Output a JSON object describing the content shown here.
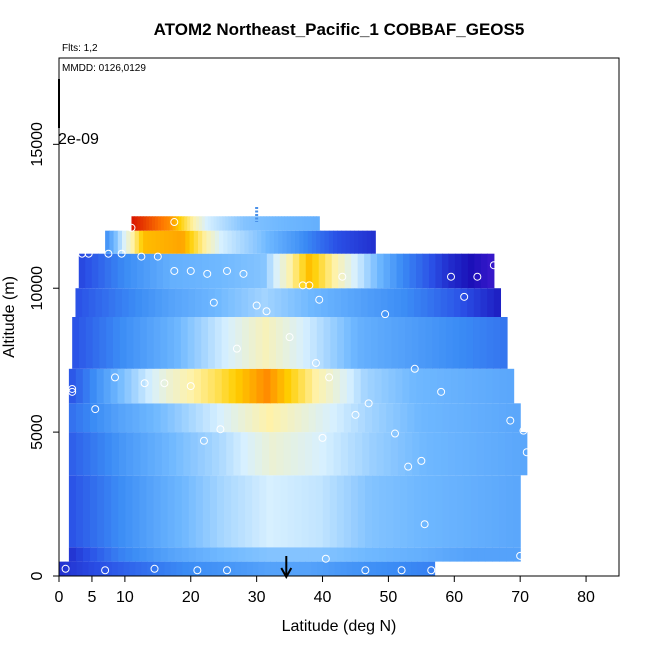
{
  "chart_data": {
    "type": "heatmap",
    "title": "ATOM2 Northeast_Pacific_1 COBBAF_GEOS5",
    "flights_label": "Flts: 1,2",
    "mmdd_label": "MMDD: 0126,0129",
    "xlabel": "Latitude (deg N)",
    "ylabel": "Altitude (m)",
    "xlim": [
      0,
      85
    ],
    "ylim": [
      0,
      18000
    ],
    "x_ticks": [
      0,
      5,
      10,
      20,
      30,
      40,
      50,
      60,
      70,
      80
    ],
    "y_ticks": [
      0,
      5000,
      10000,
      15000
    ],
    "overlay_label": "2e-09",
    "grid": false,
    "arrow_latitude": 34.5,
    "curtain": {
      "layers": [
        {
          "alt_bottom": 0,
          "alt_top": 500,
          "lat_start": 0,
          "lat_end": 57,
          "values": [
            0.15,
            0.2,
            0.25,
            0.3,
            0.32,
            0.35,
            0.35,
            0.32,
            0.3,
            0.28
          ]
        },
        {
          "alt_bottom": 500,
          "alt_top": 1000,
          "lat_start": 1.5,
          "lat_end": 70,
          "values": [
            0.15,
            0.28,
            0.35,
            0.4,
            0.42,
            0.42,
            0.4,
            0.38,
            0.35,
            0.35
          ]
        },
        {
          "alt_bottom": 1000,
          "alt_top": 3500,
          "lat_start": 1.5,
          "lat_end": 70,
          "values": [
            0.2,
            0.3,
            0.38,
            0.45,
            0.5,
            0.48,
            0.42,
            0.4,
            0.38,
            0.36
          ]
        },
        {
          "alt_bottom": 3500,
          "alt_top": 5000,
          "lat_start": 1.5,
          "lat_end": 71,
          "values": [
            0.22,
            0.32,
            0.4,
            0.46,
            0.55,
            0.5,
            0.44,
            0.4,
            0.38,
            0.36
          ]
        },
        {
          "alt_bottom": 5000,
          "alt_top": 6000,
          "lat_start": 1.5,
          "lat_end": 70,
          "values": [
            0.25,
            0.35,
            0.42,
            0.5,
            0.6,
            0.52,
            0.45,
            0.4,
            0.38,
            0.36
          ]
        },
        {
          "alt_bottom": 6000,
          "alt_top": 7200,
          "lat_start": 1.5,
          "lat_end": 69,
          "values": [
            0.2,
            0.4,
            0.55,
            0.65,
            0.78,
            0.6,
            0.45,
            0.4,
            0.38,
            0.36
          ]
        },
        {
          "alt_bottom": 7200,
          "alt_top": 9000,
          "lat_start": 2,
          "lat_end": 68,
          "values": [
            0.2,
            0.3,
            0.38,
            0.48,
            0.58,
            0.48,
            0.38,
            0.34,
            0.3,
            0.26
          ]
        },
        {
          "alt_bottom": 9000,
          "alt_top": 10000,
          "lat_start": 2.5,
          "lat_end": 67,
          "values": [
            0.2,
            0.28,
            0.35,
            0.4,
            0.45,
            0.4,
            0.35,
            0.3,
            0.22,
            0.12
          ]
        },
        {
          "alt_bottom": 10000,
          "alt_top": 11200,
          "lat_start": 3,
          "lat_end": 66,
          "values": [
            0.18,
            0.3,
            0.38,
            0.4,
            0.42,
            0.72,
            0.5,
            0.3,
            0.15,
            0.05
          ]
        },
        {
          "alt_bottom": 11200,
          "alt_top": 12000,
          "lat_start": 7,
          "lat_end": 48,
          "values": [
            0.3,
            0.72,
            0.75,
            0.5,
            0.42,
            0.32,
            0.2,
            0.15
          ]
        },
        {
          "alt_bottom": 12000,
          "alt_top": 12500,
          "lat_start": 11,
          "lat_end": 39.5,
          "values": [
            0.9,
            0.78,
            0.5,
            0.42,
            0.4,
            0.38
          ]
        }
      ]
    },
    "points": [
      {
        "lat": 1,
        "alt": 250
      },
      {
        "lat": 7,
        "alt": 200
      },
      {
        "lat": 14.5,
        "alt": 250
      },
      {
        "lat": 21,
        "alt": 200
      },
      {
        "lat": 25.5,
        "alt": 200
      },
      {
        "lat": 46.5,
        "alt": 200
      },
      {
        "lat": 52,
        "alt": 200
      },
      {
        "lat": 56.5,
        "alt": 200
      },
      {
        "lat": 40.5,
        "alt": 600
      },
      {
        "lat": 70,
        "alt": 700
      },
      {
        "lat": 55.5,
        "alt": 1800
      },
      {
        "lat": 53,
        "alt": 3800
      },
      {
        "lat": 55,
        "alt": 4000
      },
      {
        "lat": 71,
        "alt": 4300
      },
      {
        "lat": 22,
        "alt": 4700
      },
      {
        "lat": 24.5,
        "alt": 5100
      },
      {
        "lat": 40,
        "alt": 4800
      },
      {
        "lat": 51,
        "alt": 4950
      },
      {
        "lat": 70.5,
        "alt": 5050
      },
      {
        "lat": 68.5,
        "alt": 5400
      },
      {
        "lat": 5.5,
        "alt": 5800
      },
      {
        "lat": 45,
        "alt": 5600
      },
      {
        "lat": 47,
        "alt": 6000
      },
      {
        "lat": 2,
        "alt": 6400
      },
      {
        "lat": 2,
        "alt": 6500
      },
      {
        "lat": 58,
        "alt": 6400
      },
      {
        "lat": 20,
        "alt": 6600
      },
      {
        "lat": 13,
        "alt": 6700
      },
      {
        "lat": 16,
        "alt": 6700
      },
      {
        "lat": 8.5,
        "alt": 6900
      },
      {
        "lat": 41,
        "alt": 6900
      },
      {
        "lat": 54,
        "alt": 7200
      },
      {
        "lat": 39,
        "alt": 7400
      },
      {
        "lat": 27,
        "alt": 7900
      },
      {
        "lat": 35,
        "alt": 8300
      },
      {
        "lat": 49.5,
        "alt": 9100
      },
      {
        "lat": 31.5,
        "alt": 9200
      },
      {
        "lat": 30,
        "alt": 9400
      },
      {
        "lat": 23.5,
        "alt": 9500
      },
      {
        "lat": 39.5,
        "alt": 9600
      },
      {
        "lat": 61.5,
        "alt": 9700
      },
      {
        "lat": 37,
        "alt": 10100
      },
      {
        "lat": 38,
        "alt": 10100
      },
      {
        "lat": 43,
        "alt": 10400
      },
      {
        "lat": 59.5,
        "alt": 10400
      },
      {
        "lat": 63.5,
        "alt": 10400
      },
      {
        "lat": 28,
        "alt": 10500
      },
      {
        "lat": 22.5,
        "alt": 10500
      },
      {
        "lat": 20,
        "alt": 10600
      },
      {
        "lat": 17.5,
        "alt": 10600
      },
      {
        "lat": 25.5,
        "alt": 10600
      },
      {
        "lat": 66,
        "alt": 10800
      },
      {
        "lat": 3.5,
        "alt": 11200
      },
      {
        "lat": 4.5,
        "alt": 11200
      },
      {
        "lat": 7.5,
        "alt": 11200
      },
      {
        "lat": 9.5,
        "alt": 11200
      },
      {
        "lat": 12.5,
        "alt": 11100
      },
      {
        "lat": 15,
        "alt": 11100
      },
      {
        "lat": 11,
        "alt": 12100
      },
      {
        "lat": 17.5,
        "alt": 12300
      }
    ],
    "colors": {
      "background": "#ffffff",
      "arrow": "#000000",
      "dashed_marker": "#4a90e8",
      "point_stroke": "#ffffff",
      "colormap": [
        "#5b23e0",
        "#1a10b8",
        "#2a50e6",
        "#3b8cf5",
        "#6fb8ff",
        "#d7f0ff",
        "#fff2a8",
        "#ffce00",
        "#ff7a00",
        "#d81400",
        "#9e0000"
      ]
    }
  }
}
